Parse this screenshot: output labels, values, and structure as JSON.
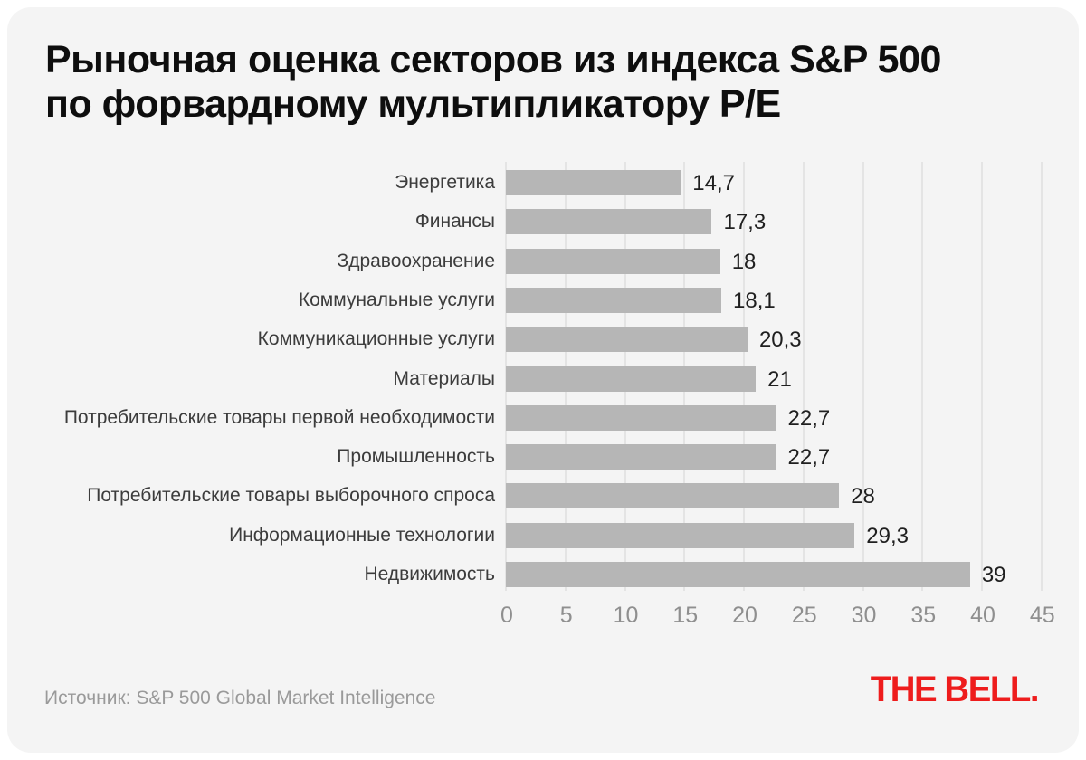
{
  "page": {
    "background": "#ffffff",
    "card_background": "#f4f4f4"
  },
  "header": {
    "title_line1": "Рыночная оценка секторов из индекса S&P 500",
    "title_line2": "по форвардному мультипликатору P/E"
  },
  "chart_data": {
    "type": "bar",
    "orientation": "horizontal",
    "title": "Рыночная оценка секторов из индекса S&P 500 по форвардному мультипликатору P/E",
    "categories": [
      "Энергетика",
      "Финансы",
      "Здравоохранение",
      "Коммунальные услуги",
      "Коммуникационные услуги",
      "Материалы",
      "Потребительские товары первой необходимости",
      "Промышленность",
      "Потребительские товары выборочного спроса",
      "Информационные технологии",
      "Недвижимость"
    ],
    "values": [
      14.7,
      17.3,
      18,
      18.1,
      20.3,
      21,
      22.7,
      22.7,
      28,
      29.3,
      39
    ],
    "value_labels": [
      "14,7",
      "17,3",
      "18",
      "18,1",
      "20,3",
      "21",
      "22,7",
      "22,7",
      "28",
      "29,3",
      "39"
    ],
    "xlabel": "",
    "ylabel": "",
    "xlim": [
      0,
      45
    ],
    "x_ticks": [
      0,
      5,
      10,
      15,
      20,
      25,
      30,
      35,
      40,
      45
    ],
    "grid": true,
    "bar_color": "#b6b6b6",
    "gridline_color": "#e4e4e4",
    "tick_color": "#8f8f8f",
    "category_label_color": "#3c3c3c",
    "value_label_color": "#1f1f1f"
  },
  "footer": {
    "source": "Источник: S&P 500 Global Market Intelligence",
    "logo_text": "THE BELL.",
    "logo_color": "#ee1c1c"
  }
}
